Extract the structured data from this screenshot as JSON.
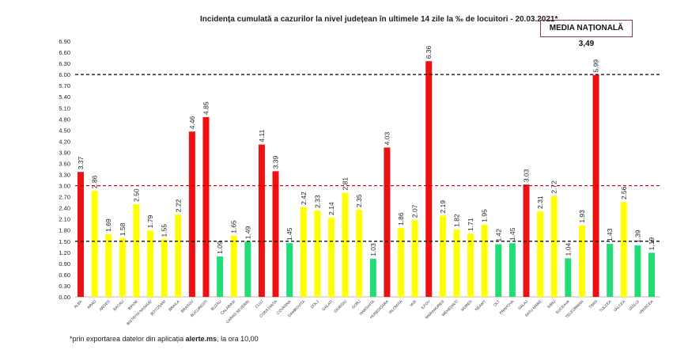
{
  "chart_data": {
    "type": "bar",
    "title": "Incidența cumulată a cazurilor la nivel județean în ultimele 14 zile la ‰ de locuitori - 20.03.2021*",
    "annotation": "MEDIA NAȚIONALĂ 3,49",
    "footnote": {
      "prefix": "*prin exportarea datelor din aplicația ",
      "bold": "alerte.ms",
      "suffix": ", la ora 10,00"
    },
    "categories": [
      "ALBA",
      "ARAD",
      "ARGES",
      "BACAU",
      "BIHOR",
      "BISTRITA NASAUD",
      "BOTOSANI",
      "BRAILA",
      "BRASOV",
      "BUCURESTI",
      "BUZAU",
      "CALARASI",
      "CARAS-SEVERIN",
      "CLUJ",
      "CONSTANTA",
      "COVASNA",
      "DAMBOVITA",
      "DOLJ",
      "GALATI",
      "GIURGIU",
      "GORJ",
      "HARGHITA",
      "HUNEDOARA",
      "IALOMITA",
      "IASI",
      "ILFOV",
      "MARAMURES",
      "MEHEDINTI",
      "MURES",
      "NEAMT",
      "OLT",
      "PRAHOVA",
      "SALAJ",
      "SATU MARE",
      "SIBIU",
      "SUCEAVA",
      "TELEORMAN",
      "TIMIS",
      "TULCEA",
      "VALCEA",
      "VASLUI",
      "VRANCEA"
    ],
    "values": [
      3.37,
      2.86,
      1.69,
      1.58,
      2.5,
      1.79,
      1.55,
      2.22,
      4.46,
      4.85,
      1.09,
      1.65,
      1.49,
      4.11,
      3.39,
      1.45,
      2.42,
      2.33,
      2.14,
      2.81,
      2.35,
      1.03,
      4.03,
      1.86,
      2.07,
      6.36,
      2.19,
      1.82,
      1.71,
      1.95,
      1.42,
      1.45,
      3.03,
      2.31,
      2.72,
      1.04,
      1.93,
      5.99,
      1.43,
      2.56,
      1.39,
      1.19
    ],
    "ylim": [
      0,
      6.9
    ],
    "ytick_step": 0.3,
    "grid": false,
    "reference_lines": [
      {
        "value": 1.5,
        "color": "#000000"
      },
      {
        "value": 3.0,
        "color": "#c00000"
      },
      {
        "value": 6.0,
        "color": "#000000"
      }
    ],
    "colors": {
      "high": "#ee1111",
      "medium": "#ffff00",
      "low": "#22dd77"
    },
    "thresholds": {
      "low_below": 1.5,
      "high_above": 3.0
    }
  }
}
